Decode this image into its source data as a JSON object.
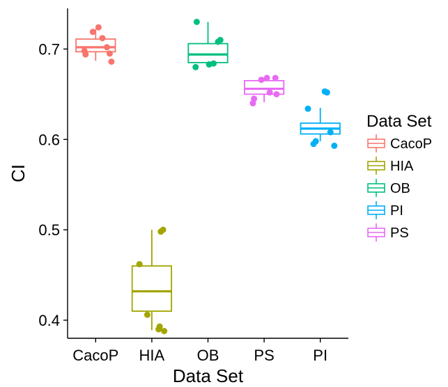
{
  "chart_data": {
    "type": "box",
    "xlabel": "Data Set",
    "ylabel": "CI",
    "ylim": [
      0.38,
      0.745
    ],
    "yticks": [
      0.4,
      0.5,
      0.6,
      0.7
    ],
    "ytick_labels": [
      "0.4",
      "0.5",
      "0.6",
      "0.7"
    ],
    "categories": [
      "CacoP",
      "HIA",
      "OB",
      "PS",
      "PI"
    ],
    "legend": {
      "title": "Data Set",
      "position": "right",
      "entries": [
        "CacoP",
        "HIA",
        "OB",
        "PI",
        "PS"
      ]
    },
    "grid": false,
    "series": [
      {
        "name": "CacoP",
        "color": "#F8766D",
        "box": {
          "lower_whisker": 0.687,
          "q1": 0.697,
          "median": 0.702,
          "q3": 0.711,
          "upper_whisker": 0.722
        },
        "points": [
          [
            -0.2,
            0.698
          ],
          [
            -0.18,
            0.694
          ],
          [
            -0.05,
            0.719
          ],
          [
            0.05,
            0.724
          ],
          [
            0.12,
            0.712
          ],
          [
            0.2,
            0.702
          ],
          [
            0.25,
            0.695
          ],
          [
            0.28,
            0.686
          ]
        ]
      },
      {
        "name": "HIA",
        "color": "#A3A500",
        "box": {
          "lower_whisker": 0.389,
          "q1": 0.41,
          "median": 0.432,
          "q3": 0.46,
          "upper_whisker": 0.5
        },
        "points": [
          [
            -0.22,
            0.462
          ],
          [
            -0.08,
            0.406
          ],
          [
            0.12,
            0.39
          ],
          [
            0.14,
            0.393
          ],
          [
            0.16,
            0.498
          ],
          [
            0.2,
            0.5
          ],
          [
            0.22,
            0.388
          ]
        ]
      },
      {
        "name": "OB",
        "color": "#00BF7D",
        "box": {
          "lower_whisker": 0.681,
          "q1": 0.685,
          "median": 0.694,
          "q3": 0.706,
          "upper_whisker": 0.73
        },
        "points": [
          [
            -0.22,
            0.68
          ],
          [
            -0.2,
            0.73
          ],
          [
            0.02,
            0.683
          ],
          [
            0.1,
            0.684
          ],
          [
            0.18,
            0.708
          ],
          [
            0.22,
            0.71
          ]
        ]
      },
      {
        "name": "PS",
        "color": "#E76BF3",
        "box": {
          "lower_whisker": 0.641,
          "q1": 0.65,
          "median": 0.656,
          "q3": 0.665,
          "upper_whisker": 0.667
        },
        "points": [
          [
            -0.2,
            0.64
          ],
          [
            -0.18,
            0.645
          ],
          [
            -0.05,
            0.666
          ],
          [
            0.05,
            0.668
          ],
          [
            0.1,
            0.652
          ],
          [
            0.2,
            0.668
          ],
          [
            0.22,
            0.65
          ]
        ]
      },
      {
        "name": "PI",
        "color": "#00B0F6",
        "box": {
          "lower_whisker": 0.598,
          "q1": 0.606,
          "median": 0.612,
          "q3": 0.618,
          "upper_whisker": 0.635
        },
        "points": [
          [
            -0.22,
            0.634
          ],
          [
            -0.12,
            0.595
          ],
          [
            -0.08,
            0.598
          ],
          [
            0.08,
            0.653
          ],
          [
            0.12,
            0.652
          ],
          [
            0.18,
            0.608
          ],
          [
            0.25,
            0.593
          ]
        ]
      }
    ]
  }
}
